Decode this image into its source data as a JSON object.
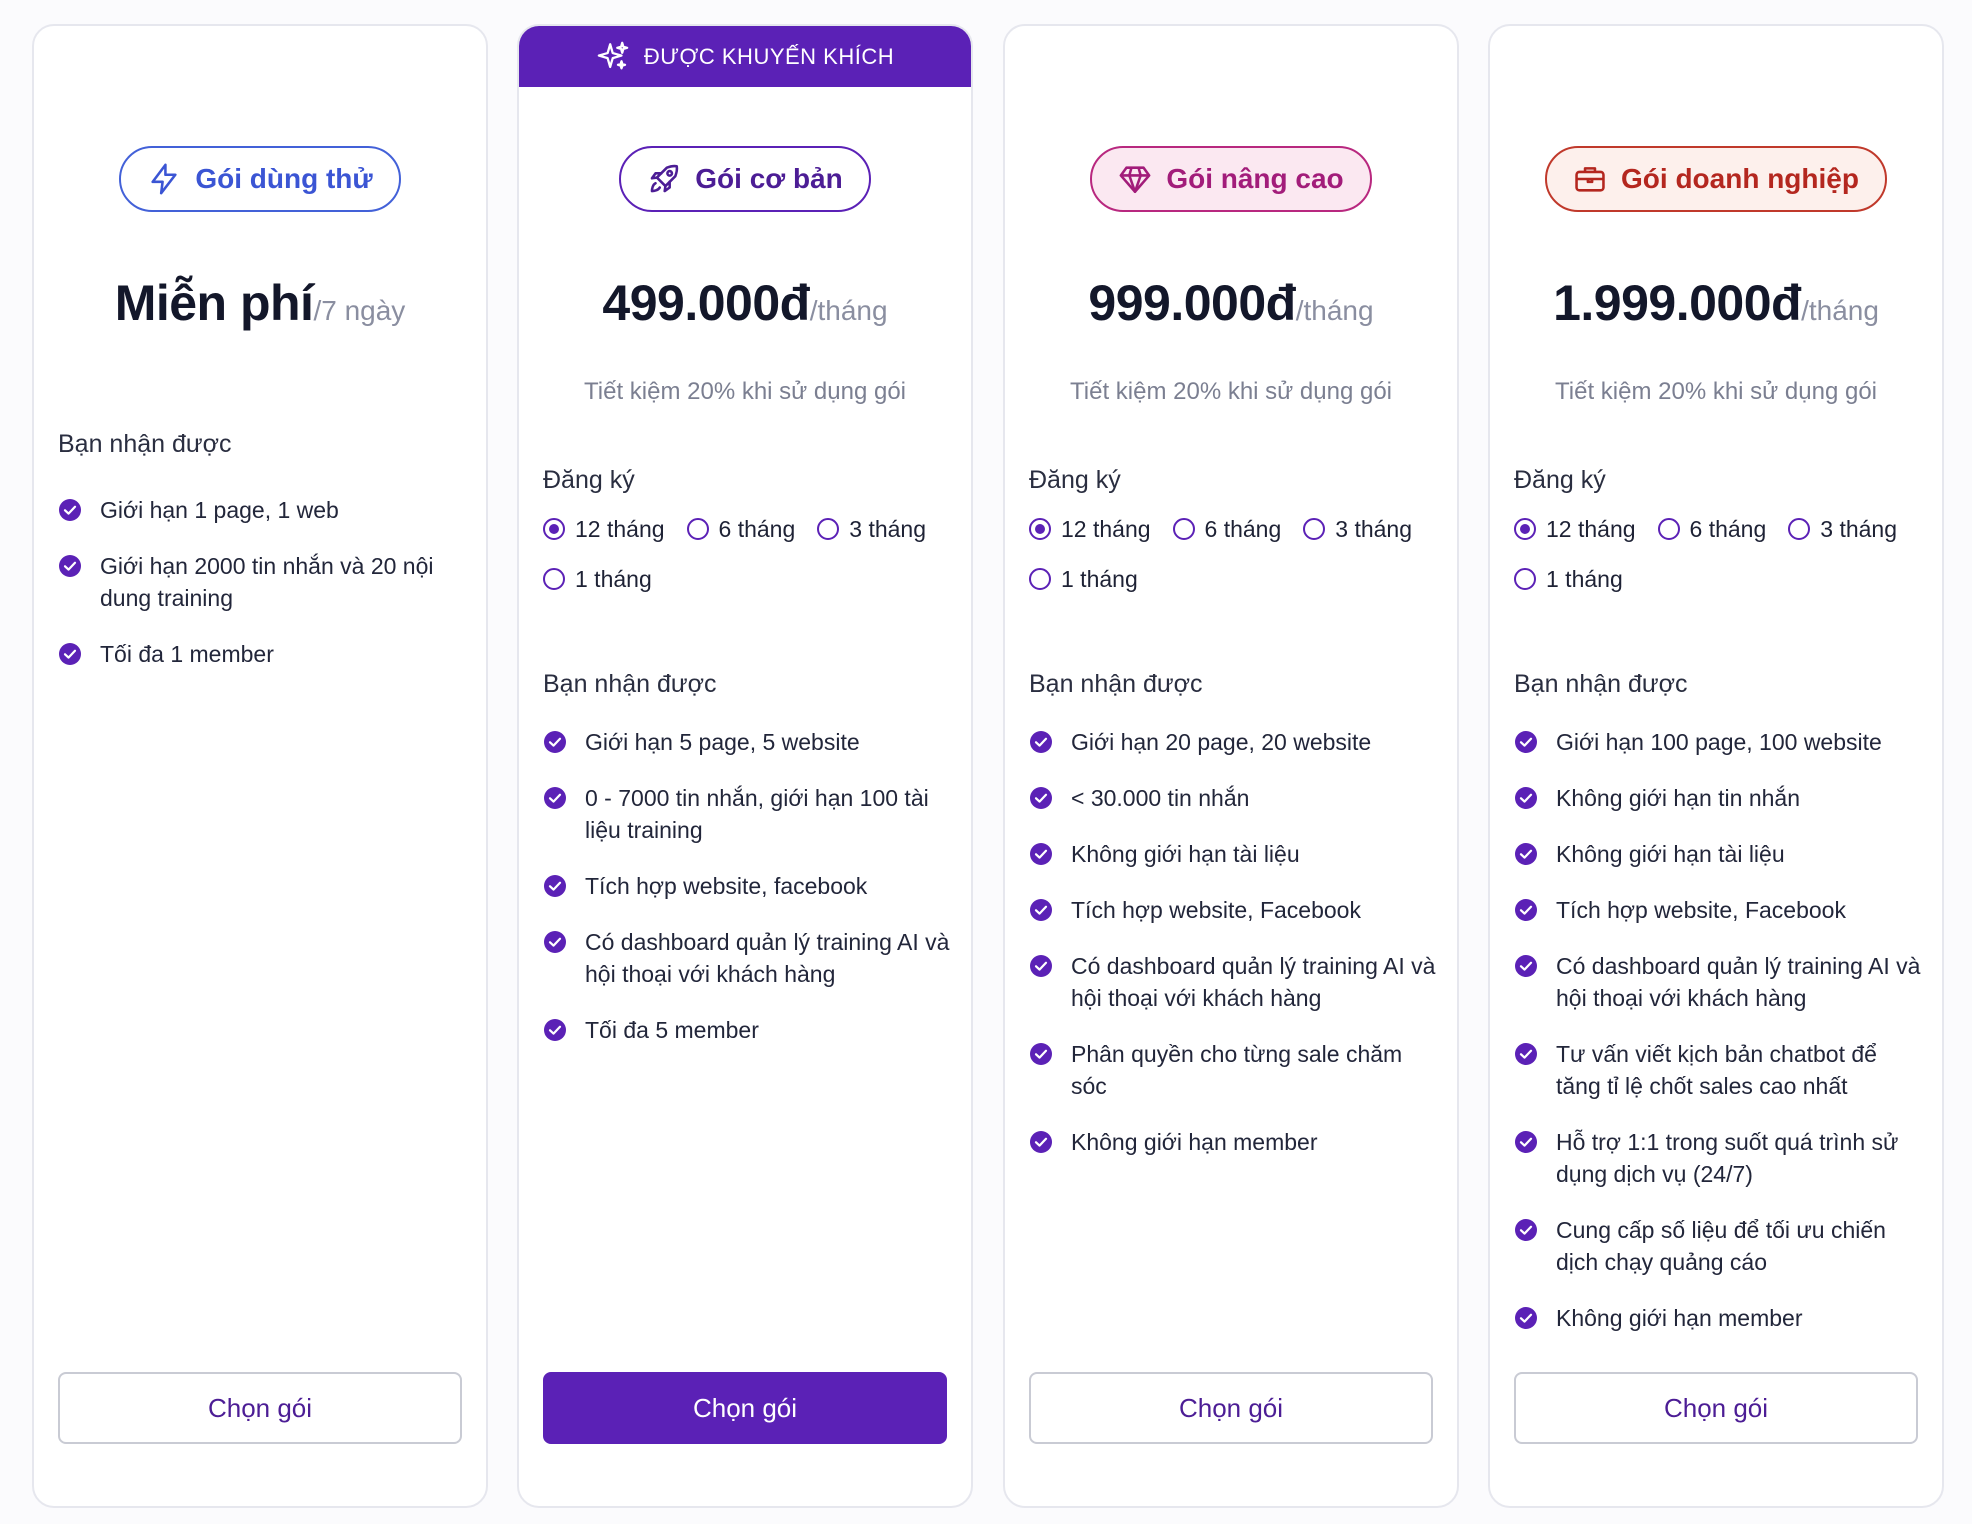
{
  "colors": {
    "primary": "#5b21b6",
    "trial": "#4361d8",
    "advanced": "#b8287f",
    "enterprise": "#c0392b"
  },
  "recommended_label": "ĐƯỢC KHUYẾN KHÍCH",
  "plans": [
    {
      "badge": "Gói dùng thử",
      "icon": "lightning-icon",
      "price": "Miễn phí",
      "unit": "/7 ngày",
      "saving": "",
      "register_title": "",
      "options": [],
      "features_title": "Bạn nhận được",
      "features": [
        "Giới hạn 1 page, 1 web",
        "Giới hạn 2000 tin nhắn và 20 nội dung training",
        "Tối đa 1 member"
      ],
      "cta": "Chọn gói"
    },
    {
      "badge": "Gói cơ bản",
      "icon": "rocket-icon",
      "price": "499.000đ",
      "unit": "/tháng",
      "saving": "Tiết kiệm 20% khi sử dụng gói",
      "register_title": "Đăng ký",
      "options": [
        "12 tháng",
        "6 tháng",
        "3 tháng",
        "1 tháng"
      ],
      "selected": 0,
      "features_title": "Bạn nhận được",
      "features": [
        "Giới hạn 5 page, 5 website",
        "0 - 7000 tin nhắn, giới hạn 100 tài liệu training",
        "Tích hợp website, facebook",
        "Có dashboard quản lý training AI và hội thoại với khách hàng",
        "Tối đa 5 member"
      ],
      "cta": "Chọn gói"
    },
    {
      "badge": "Gói nâng cao",
      "icon": "diamond-icon",
      "price": "999.000đ",
      "unit": "/tháng",
      "saving": "Tiết kiệm 20% khi sử dụng gói",
      "register_title": "Đăng ký",
      "options": [
        "12 tháng",
        "6 tháng",
        "3 tháng",
        "1 tháng"
      ],
      "selected": 0,
      "features_title": "Bạn nhận được",
      "features": [
        "Giới hạn 20 page, 20 website",
        "< 30.000 tin nhắn",
        "Không giới hạn tài liệu",
        "Tích hợp website, Facebook",
        "Có dashboard quản lý training AI và hội thoại với khách hàng",
        "Phân quyền cho từng sale chăm sóc",
        "Không giới hạn member"
      ],
      "cta": "Chọn gói"
    },
    {
      "badge": "Gói doanh nghiệp",
      "icon": "briefcase-icon",
      "price": "1.999.000đ",
      "unit": "/tháng",
      "saving": "Tiết kiệm 20% khi sử dụng gói",
      "register_title": "Đăng ký",
      "options": [
        "12 tháng",
        "6 tháng",
        "3 tháng",
        "1 tháng"
      ],
      "selected": 0,
      "features_title": "Bạn nhận được",
      "features": [
        "Giới hạn 100 page, 100 website",
        "Không giới hạn tin nhắn",
        "Không giới hạn tài liệu",
        "Tích hợp website, Facebook",
        "Có dashboard quản lý training AI và hội thoại với khách hàng",
        "Tư vấn viết kịch bản chatbot để tăng tỉ lệ chốt sales cao nhất",
        "Hỗ trợ 1:1 trong suốt quá trình sử dụng dịch vụ (24/7)",
        "Cung cấp số liệu để tối ưu chiến dịch chạy quảng cáo",
        "Không giới hạn member"
      ],
      "cta": "Chọn gói"
    }
  ]
}
